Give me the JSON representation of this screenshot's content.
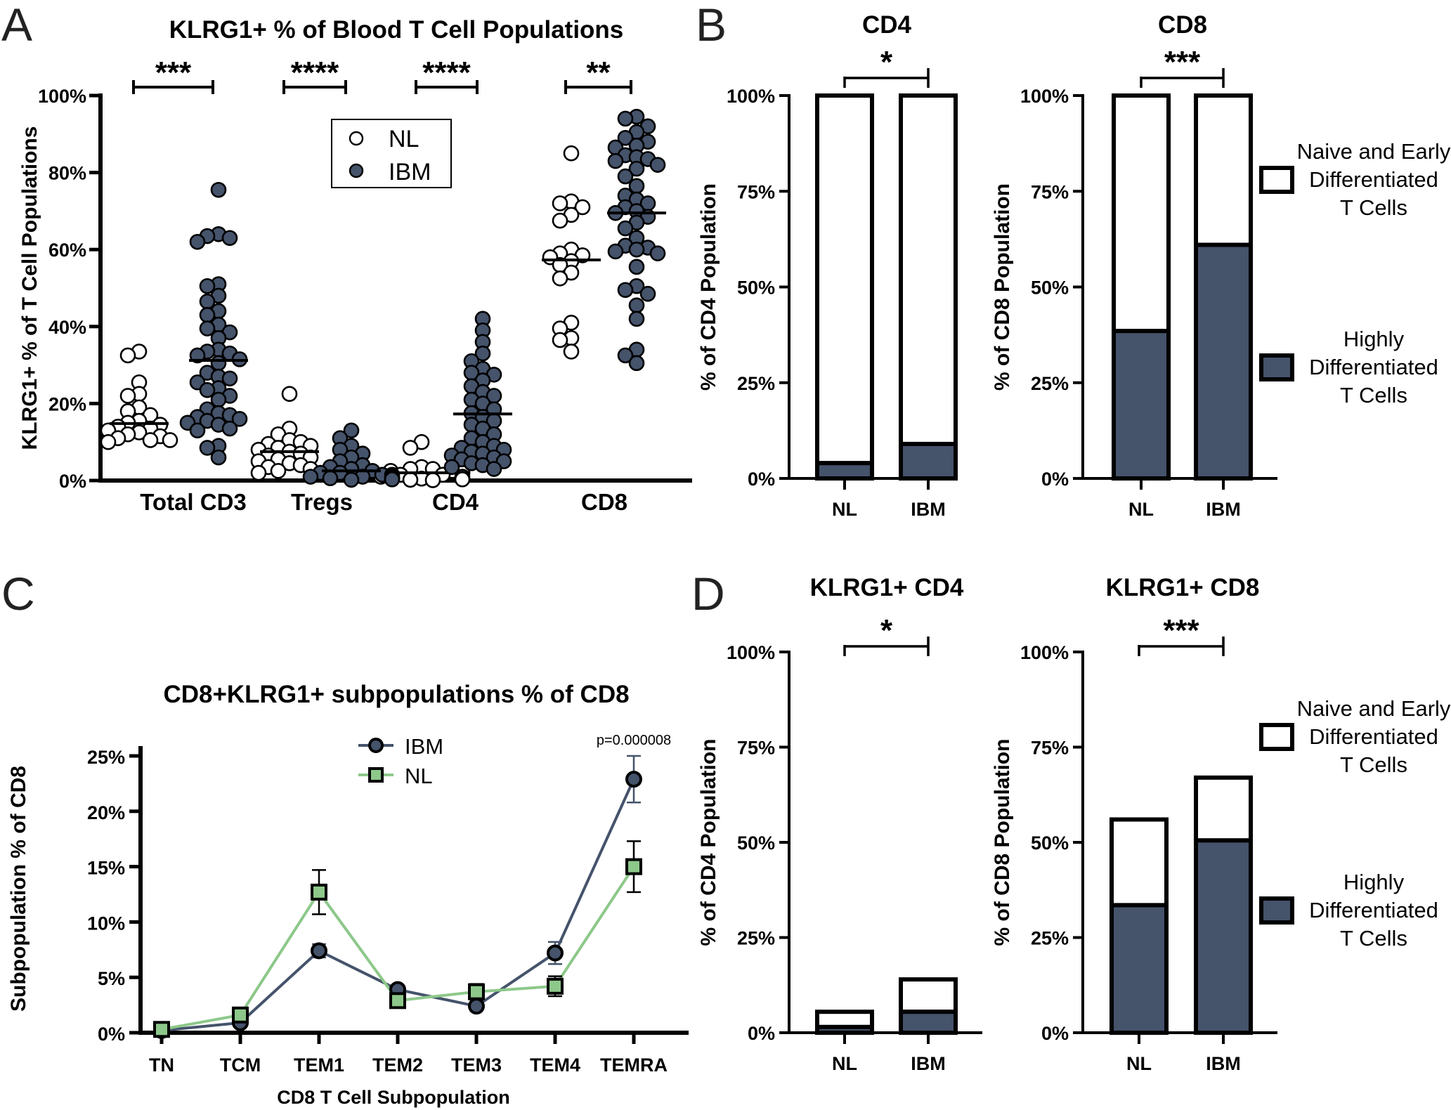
{
  "colors": {
    "ibm_fill": "#45536B",
    "nl_fill": "#FFFFFF",
    "nl_line_green": "#8DC88A",
    "ibm_line": "#45536B",
    "axis": "#000000"
  },
  "panels": {
    "A": {
      "letter": "A"
    },
    "B": {
      "letter": "B"
    },
    "C": {
      "letter": "C"
    },
    "D": {
      "letter": "D"
    }
  },
  "chart_data": [
    {
      "id": "A",
      "type": "scatter",
      "title": "KLRG1+ % of Blood T Cell Populations",
      "ylabel": "KLRG1+ % of T Cell Populations",
      "xlabel": "",
      "ylim": [
        0,
        100
      ],
      "yticks": [
        "0%",
        "20%",
        "40%",
        "60%",
        "80%",
        "100%"
      ],
      "categories": [
        "Total CD3",
        "Tregs",
        "CD4",
        "CD8"
      ],
      "legend": {
        "position": "top-center",
        "entries": [
          "NL",
          "IBM"
        ]
      },
      "significance": [
        "***",
        "****",
        "****",
        "**"
      ],
      "series": [
        {
          "name": "NL",
          "medians": [
            14.8,
            7.5,
            2.0,
            57.3
          ],
          "values": [
            [
              33.5,
              32.5,
              25.5,
              22.5,
              22.0,
              19.0,
              18.0,
              17.0,
              15.5,
              15.0,
              14.5,
              14.0,
              13.5,
              13.0,
              12.5,
              12.0,
              11.5,
              11.0,
              10.5,
              10.5,
              10.0
            ],
            [
              22.5,
              13.5,
              12.0,
              10.5,
              10.0,
              9.5,
              9.0,
              8.5,
              8.0,
              7.5,
              7.0,
              6.5,
              6.0,
              5.5,
              5.0,
              4.5,
              4.0,
              3.5,
              3.0,
              2.5,
              2.0
            ],
            [
              10.0,
              8.5,
              3.5,
              3.0,
              3.0,
              2.5,
              2.5,
              2.0,
              2.0,
              1.5,
              1.5,
              1.0,
              1.0,
              0.5,
              0.5,
              0.3,
              0.2,
              0.1
            ],
            [
              85.0,
              72.5,
              72.0,
              71.0,
              69.0,
              67.5,
              60.0,
              59.0,
              58.5,
              58.0,
              57.0,
              56.0,
              54.0,
              52.5,
              41.0,
              39.5,
              37.0,
              36.5,
              33.5
            ]
          ]
        },
        {
          "name": "IBM",
          "medians": [
            31.2,
            2.5,
            17.3,
            69.5
          ],
          "values": [
            [
              75.5,
              64.0,
              63.5,
              63.0,
              62.0,
              51.0,
              50.5,
              48.0,
              46.5,
              44.0,
              43.0,
              40.5,
              39.5,
              38.5,
              37.0,
              34.0,
              33.5,
              33.0,
              32.5,
              31.5,
              30.5,
              28.0,
              27.0,
              26.5,
              25.5,
              24.0,
              23.5,
              22.0,
              21.0,
              18.5,
              17.5,
              17.0,
              16.5,
              16.0,
              15.5,
              15.0,
              14.5,
              13.5,
              13.0,
              9.0,
              8.5,
              6.0
            ],
            [
              13.0,
              11.0,
              9.0,
              8.0,
              7.0,
              6.0,
              5.0,
              4.0,
              3.5,
              3.0,
              2.5,
              2.0,
              2.0,
              1.5,
              1.5,
              1.0,
              1.0,
              1.0,
              0.8,
              0.6,
              0.5,
              0.5,
              0.4,
              0.3,
              0.2
            ],
            [
              42.0,
              39.0,
              36.0,
              33.0,
              31.0,
              29.0,
              28.0,
              27.5,
              26.0,
              24.5,
              23.0,
              22.0,
              21.0,
              20.0,
              18.5,
              17.5,
              16.5,
              15.5,
              14.5,
              13.5,
              12.0,
              11.0,
              10.0,
              9.0,
              8.5,
              8.0,
              7.5,
              7.0,
              6.5,
              6.0,
              5.5,
              5.0,
              4.5,
              4.0,
              3.5,
              3.0
            ],
            [
              94.5,
              94.0,
              92.0,
              90.5,
              89.0,
              88.0,
              87.0,
              86.5,
              84.5,
              84.0,
              83.5,
              83.0,
              82.0,
              81.0,
              79.0,
              76.5,
              74.0,
              73.0,
              72.0,
              71.0,
              70.0,
              69.5,
              68.5,
              67.0,
              65.5,
              63.0,
              61.0,
              60.5,
              60.0,
              59.5,
              59.0,
              55.5,
              50.5,
              49.5,
              48.5,
              45.5,
              42.0,
              34.0,
              32.5,
              30.5
            ]
          ]
        }
      ]
    },
    {
      "id": "B-CD4",
      "type": "bar",
      "stacked": true,
      "title": "CD4",
      "ylabel": "% of CD4 Population",
      "ylim": [
        0,
        100
      ],
      "yticks": [
        "0%",
        "25%",
        "50%",
        "75%",
        "100%"
      ],
      "categories": [
        "NL",
        "IBM"
      ],
      "significance": "*",
      "series": [
        {
          "name": "Highly Differentiated T Cells",
          "values": [
            4,
            9
          ]
        },
        {
          "name": "Naive and Early Differentiated T Cells",
          "values": [
            96,
            91
          ]
        }
      ]
    },
    {
      "id": "B-CD8",
      "type": "bar",
      "stacked": true,
      "title": "CD8",
      "ylabel": "% of CD8 Population",
      "ylim": [
        0,
        100
      ],
      "yticks": [
        "0%",
        "25%",
        "50%",
        "75%",
        "100%"
      ],
      "categories": [
        "NL",
        "IBM"
      ],
      "significance": "***",
      "legend": {
        "position": "right",
        "entries": [
          {
            "lines": [
              "Naive and Early",
              "Differentiated",
              "T Cells"
            ],
            "fill": "white"
          },
          {
            "lines": [
              "Highly",
              "Differentiated",
              "T Cells"
            ],
            "fill": "dark"
          }
        ]
      },
      "series": [
        {
          "name": "Highly Differentiated T Cells",
          "values": [
            38.5,
            61
          ]
        },
        {
          "name": "Naive and Early Differentiated T Cells",
          "values": [
            61.5,
            39
          ]
        }
      ]
    },
    {
      "id": "C",
      "type": "line",
      "title": "CD8+KLRG1+ subpopulations % of CD8",
      "ylabel": "Subpopulation % of CD8",
      "xlabel": "CD8 T Cell Subpopulation",
      "ylim": [
        0,
        25
      ],
      "yticks": [
        "0%",
        "5%",
        "10%",
        "15%",
        "20%",
        "25%"
      ],
      "categories": [
        "TN",
        "TCM",
        "TEM1",
        "TEM2",
        "TEM3",
        "TEM4",
        "TEMRA"
      ],
      "legend": {
        "position": "top-center",
        "entries": [
          "IBM",
          "NL"
        ]
      },
      "annotation": "p=0.000008",
      "series": [
        {
          "name": "IBM",
          "marker": "circle",
          "values": [
            0.2,
            0.9,
            7.4,
            3.9,
            2.4,
            7.2,
            22.9
          ],
          "errors": [
            0.1,
            0.2,
            0.6,
            0.3,
            0.3,
            1.0,
            2.1
          ]
        },
        {
          "name": "NL",
          "marker": "square",
          "values": [
            0.3,
            1.6,
            12.7,
            2.9,
            3.7,
            4.2,
            15.0
          ],
          "errors": [
            0.1,
            0.3,
            2.0,
            0.3,
            0.7,
            0.9,
            2.3
          ]
        }
      ]
    },
    {
      "id": "D-CD4",
      "type": "bar",
      "stacked": true,
      "title": "KLRG1+ CD4",
      "ylabel": "% of CD4 Population",
      "ylim": [
        0,
        100
      ],
      "yticks": [
        "0%",
        "25%",
        "50%",
        "75%",
        "100%"
      ],
      "categories": [
        "NL",
        "IBM"
      ],
      "significance": "*",
      "series": [
        {
          "name": "Highly Differentiated T Cells",
          "values": [
            1.5,
            5.5
          ]
        },
        {
          "name": "Naive and Early Differentiated T Cells",
          "values": [
            4.0,
            8.5
          ]
        }
      ]
    },
    {
      "id": "D-CD8",
      "type": "bar",
      "stacked": true,
      "title": "KLRG1+ CD8",
      "ylabel": "% of CD8 Population",
      "ylim": [
        0,
        100
      ],
      "yticks": [
        "0%",
        "25%",
        "50%",
        "75%",
        "100%"
      ],
      "categories": [
        "NL",
        "IBM"
      ],
      "significance": "***",
      "legend": {
        "position": "right",
        "entries": [
          {
            "lines": [
              "Naive and Early",
              "Differentiated",
              "T Cells"
            ],
            "fill": "white"
          },
          {
            "lines": [
              "Highly",
              "Differentiated",
              "T Cells"
            ],
            "fill": "dark"
          }
        ]
      },
      "series": [
        {
          "name": "Highly Differentiated T Cells",
          "values": [
            33.5,
            50.5
          ]
        },
        {
          "name": "Naive and Early Differentiated T Cells",
          "values": [
            22.5,
            16.5
          ]
        }
      ]
    }
  ]
}
